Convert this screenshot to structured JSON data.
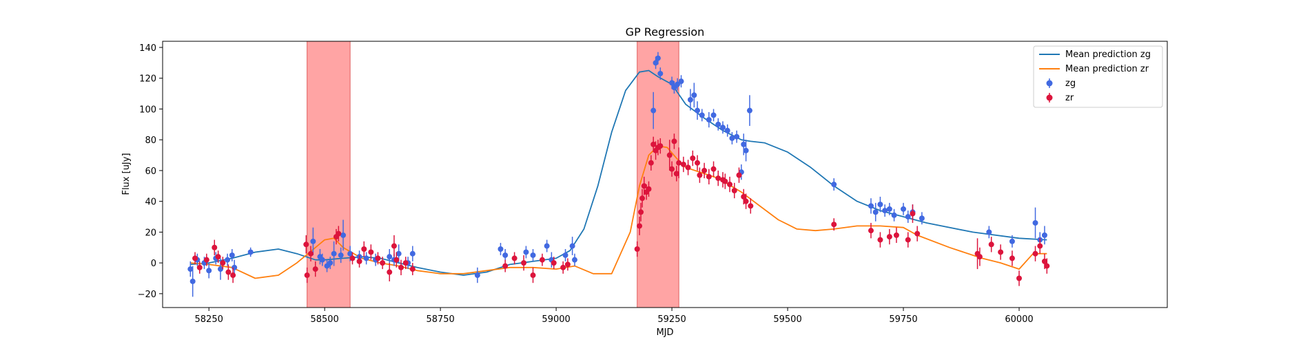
{
  "chart_data": {
    "type": "scatter",
    "title": "GP Regression",
    "xlabel": "MJD",
    "ylabel": "Flux [uJy]",
    "xlim": [
      58150,
      60320
    ],
    "ylim": [
      -29,
      144
    ],
    "xticks": [
      58250,
      58500,
      58750,
      59000,
      59250,
      59500,
      59750,
      60000
    ],
    "yticks": [
      -20,
      0,
      20,
      40,
      60,
      80,
      100,
      120,
      140
    ],
    "grid": false,
    "legend_position": "top-right",
    "shaded_regions": [
      {
        "x_start": 58462,
        "x_end": 58555,
        "color": "#ff9a9a"
      },
      {
        "x_start": 59175,
        "x_end": 59265,
        "color": "#ff9a9a"
      }
    ],
    "series": [
      {
        "name": "Mean prediction zg",
        "kind": "line",
        "color": "#1f77b4",
        "x": [
          58210,
          58250,
          58300,
          58350,
          58400,
          58440,
          58480,
          58500,
          58540,
          58580,
          58620,
          58660,
          58700,
          58750,
          58800,
          58850,
          58900,
          58950,
          59000,
          59030,
          59060,
          59090,
          59120,
          59150,
          59180,
          59200,
          59220,
          59250,
          59280,
          59320,
          59360,
          59400,
          59420,
          59450,
          59500,
          59550,
          59600,
          59650,
          59700,
          59750,
          59800,
          59900,
          60000,
          60060
        ],
        "y": [
          -1,
          0,
          3,
          7,
          9,
          6,
          2,
          2,
          3,
          4,
          3,
          0,
          -3,
          -6,
          -8,
          -6,
          -1,
          1,
          3,
          8,
          22,
          50,
          85,
          112,
          124,
          125,
          121,
          116,
          103,
          94,
          86,
          80,
          79,
          78,
          72,
          62,
          50,
          40,
          34,
          30,
          26,
          20,
          16,
          15
        ]
      },
      {
        "name": "Mean prediction zr",
        "kind": "line",
        "color": "#ff7f0e",
        "x": [
          58210,
          58250,
          58300,
          58350,
          58400,
          58440,
          58480,
          58500,
          58520,
          58540,
          58580,
          58620,
          58660,
          58700,
          58750,
          58800,
          58850,
          58900,
          58950,
          59000,
          59040,
          59080,
          59120,
          59160,
          59180,
          59200,
          59220,
          59240,
          59260,
          59280,
          59300,
          59350,
          59400,
          59440,
          59480,
          59520,
          59560,
          59600,
          59650,
          59700,
          59750,
          59780,
          59850,
          59920,
          59960,
          60000,
          60030,
          60060
        ],
        "y": [
          0,
          -1,
          -3,
          -10,
          -8,
          0,
          10,
          15,
          16,
          10,
          3,
          0,
          -2,
          -5,
          -7,
          -7,
          -5,
          -3,
          -3,
          -4,
          -2,
          -7,
          -7,
          20,
          50,
          70,
          76,
          75,
          68,
          62,
          60,
          55,
          46,
          37,
          28,
          22,
          21,
          22,
          24,
          24,
          23,
          18,
          10,
          3,
          0,
          -4,
          6,
          6
        ]
      },
      {
        "name": "zg",
        "kind": "errorbar",
        "color": "#4169e1",
        "x": [
          58210,
          58215,
          58225,
          58240,
          58250,
          58265,
          58275,
          58290,
          58300,
          58305,
          58340,
          58475,
          58490,
          58495,
          58505,
          58512,
          58520,
          58535,
          58540,
          58555,
          58575,
          58590,
          58610,
          58640,
          58650,
          58660,
          58680,
          58690,
          58830,
          58880,
          58890,
          58935,
          58950,
          58980,
          58990,
          59020,
          59035,
          59040,
          59210,
          59215,
          59220,
          59225,
          59250,
          59255,
          59262,
          59270,
          59290,
          59298,
          59305,
          59315,
          59330,
          59340,
          59350,
          59360,
          59370,
          59380,
          59390,
          59400,
          59405,
          59410,
          59418,
          59600,
          59680,
          59690,
          59700,
          59710,
          59720,
          59730,
          59750,
          59760,
          59770,
          59790,
          59935,
          59985,
          60035,
          60045,
          60055
        ],
        "y": [
          -4,
          -12,
          2,
          0,
          -5,
          3,
          -4,
          2,
          5,
          -3,
          7,
          14,
          4,
          2,
          -2,
          0,
          6,
          5,
          18,
          6,
          4,
          3,
          2,
          4,
          2,
          6,
          0,
          6,
          -8,
          9,
          5,
          7,
          5,
          11,
          2,
          5,
          11,
          2,
          99,
          130,
          133,
          123,
          117,
          114,
          116,
          118,
          106,
          109,
          99,
          96,
          93,
          96,
          90,
          88,
          86,
          81,
          82,
          59,
          77,
          73,
          99,
          51,
          37,
          33,
          38,
          34,
          35,
          31,
          35,
          30,
          33,
          29,
          20,
          14,
          26,
          15,
          18
        ],
        "err": [
          5,
          10,
          4,
          4,
          5,
          4,
          7,
          4,
          4,
          5,
          3,
          9,
          5,
          4,
          4,
          4,
          8,
          5,
          10,
          5,
          4,
          4,
          4,
          5,
          4,
          6,
          4,
          5,
          5,
          4,
          4,
          4,
          4,
          4,
          5,
          4,
          6,
          4,
          12,
          4,
          4,
          4,
          4,
          4,
          4,
          4,
          7,
          8,
          6,
          4,
          5,
          4,
          4,
          4,
          4,
          4,
          4,
          5,
          7,
          7,
          10,
          4,
          5,
          6,
          5,
          4,
          4,
          4,
          4,
          4,
          5,
          4,
          4,
          4,
          10,
          5,
          6
        ]
      },
      {
        "name": "zr",
        "kind": "errorbar",
        "color": "#dc143c",
        "x": [
          58220,
          58230,
          58245,
          58262,
          58270,
          58280,
          58292,
          58302,
          58460,
          58462,
          58470,
          58480,
          58525,
          58530,
          58560,
          58575,
          58585,
          58600,
          58615,
          58625,
          58640,
          58650,
          58655,
          58665,
          58675,
          58690,
          58890,
          58910,
          58930,
          58950,
          58970,
          58995,
          59015,
          59025,
          59175,
          59180,
          59183,
          59186,
          59190,
          59195,
          59200,
          59205,
          59210,
          59215,
          59220,
          59225,
          59245,
          59250,
          59255,
          59260,
          59265,
          59275,
          59285,
          59295,
          59305,
          59310,
          59320,
          59330,
          59340,
          59350,
          59360,
          59365,
          59375,
          59385,
          59395,
          59405,
          59410,
          59420,
          59600,
          59680,
          59700,
          59720,
          59735,
          59760,
          59770,
          59780,
          59910,
          59915,
          59940,
          59960,
          59985,
          60000,
          60035,
          60045,
          60055,
          60060
        ],
        "y": [
          3,
          -3,
          2,
          10,
          4,
          0,
          -6,
          -8,
          12,
          -8,
          6,
          -4,
          17,
          19,
          3,
          1,
          9,
          7,
          3,
          0,
          -6,
          11,
          2,
          -3,
          0,
          -4,
          -2,
          3,
          0,
          -8,
          2,
          0,
          -3,
          -1,
          9,
          24,
          33,
          42,
          50,
          46,
          48,
          65,
          77,
          73,
          75,
          76,
          70,
          61,
          79,
          58,
          65,
          64,
          62,
          68,
          65,
          57,
          60,
          56,
          61,
          55,
          54,
          53,
          51,
          47,
          57,
          43,
          40,
          37,
          25,
          21,
          15,
          17,
          18,
          15,
          32,
          19,
          6,
          4,
          12,
          7,
          3,
          -10,
          6,
          11,
          1,
          -2
        ],
        "err": [
          4,
          4,
          4,
          5,
          4,
          4,
          5,
          5,
          6,
          5,
          5,
          5,
          5,
          5,
          4,
          4,
          5,
          5,
          4,
          4,
          6,
          7,
          5,
          5,
          4,
          4,
          4,
          4,
          5,
          5,
          4,
          4,
          4,
          4,
          5,
          6,
          6,
          6,
          6,
          5,
          5,
          5,
          5,
          6,
          5,
          5,
          10,
          5,
          5,
          5,
          10,
          5,
          5,
          5,
          5,
          5,
          5,
          5,
          5,
          5,
          5,
          5,
          5,
          5,
          5,
          5,
          5,
          5,
          4,
          5,
          5,
          5,
          5,
          5,
          6,
          5,
          10,
          6,
          5,
          5,
          5,
          5,
          5,
          5,
          5,
          5
        ]
      }
    ]
  }
}
